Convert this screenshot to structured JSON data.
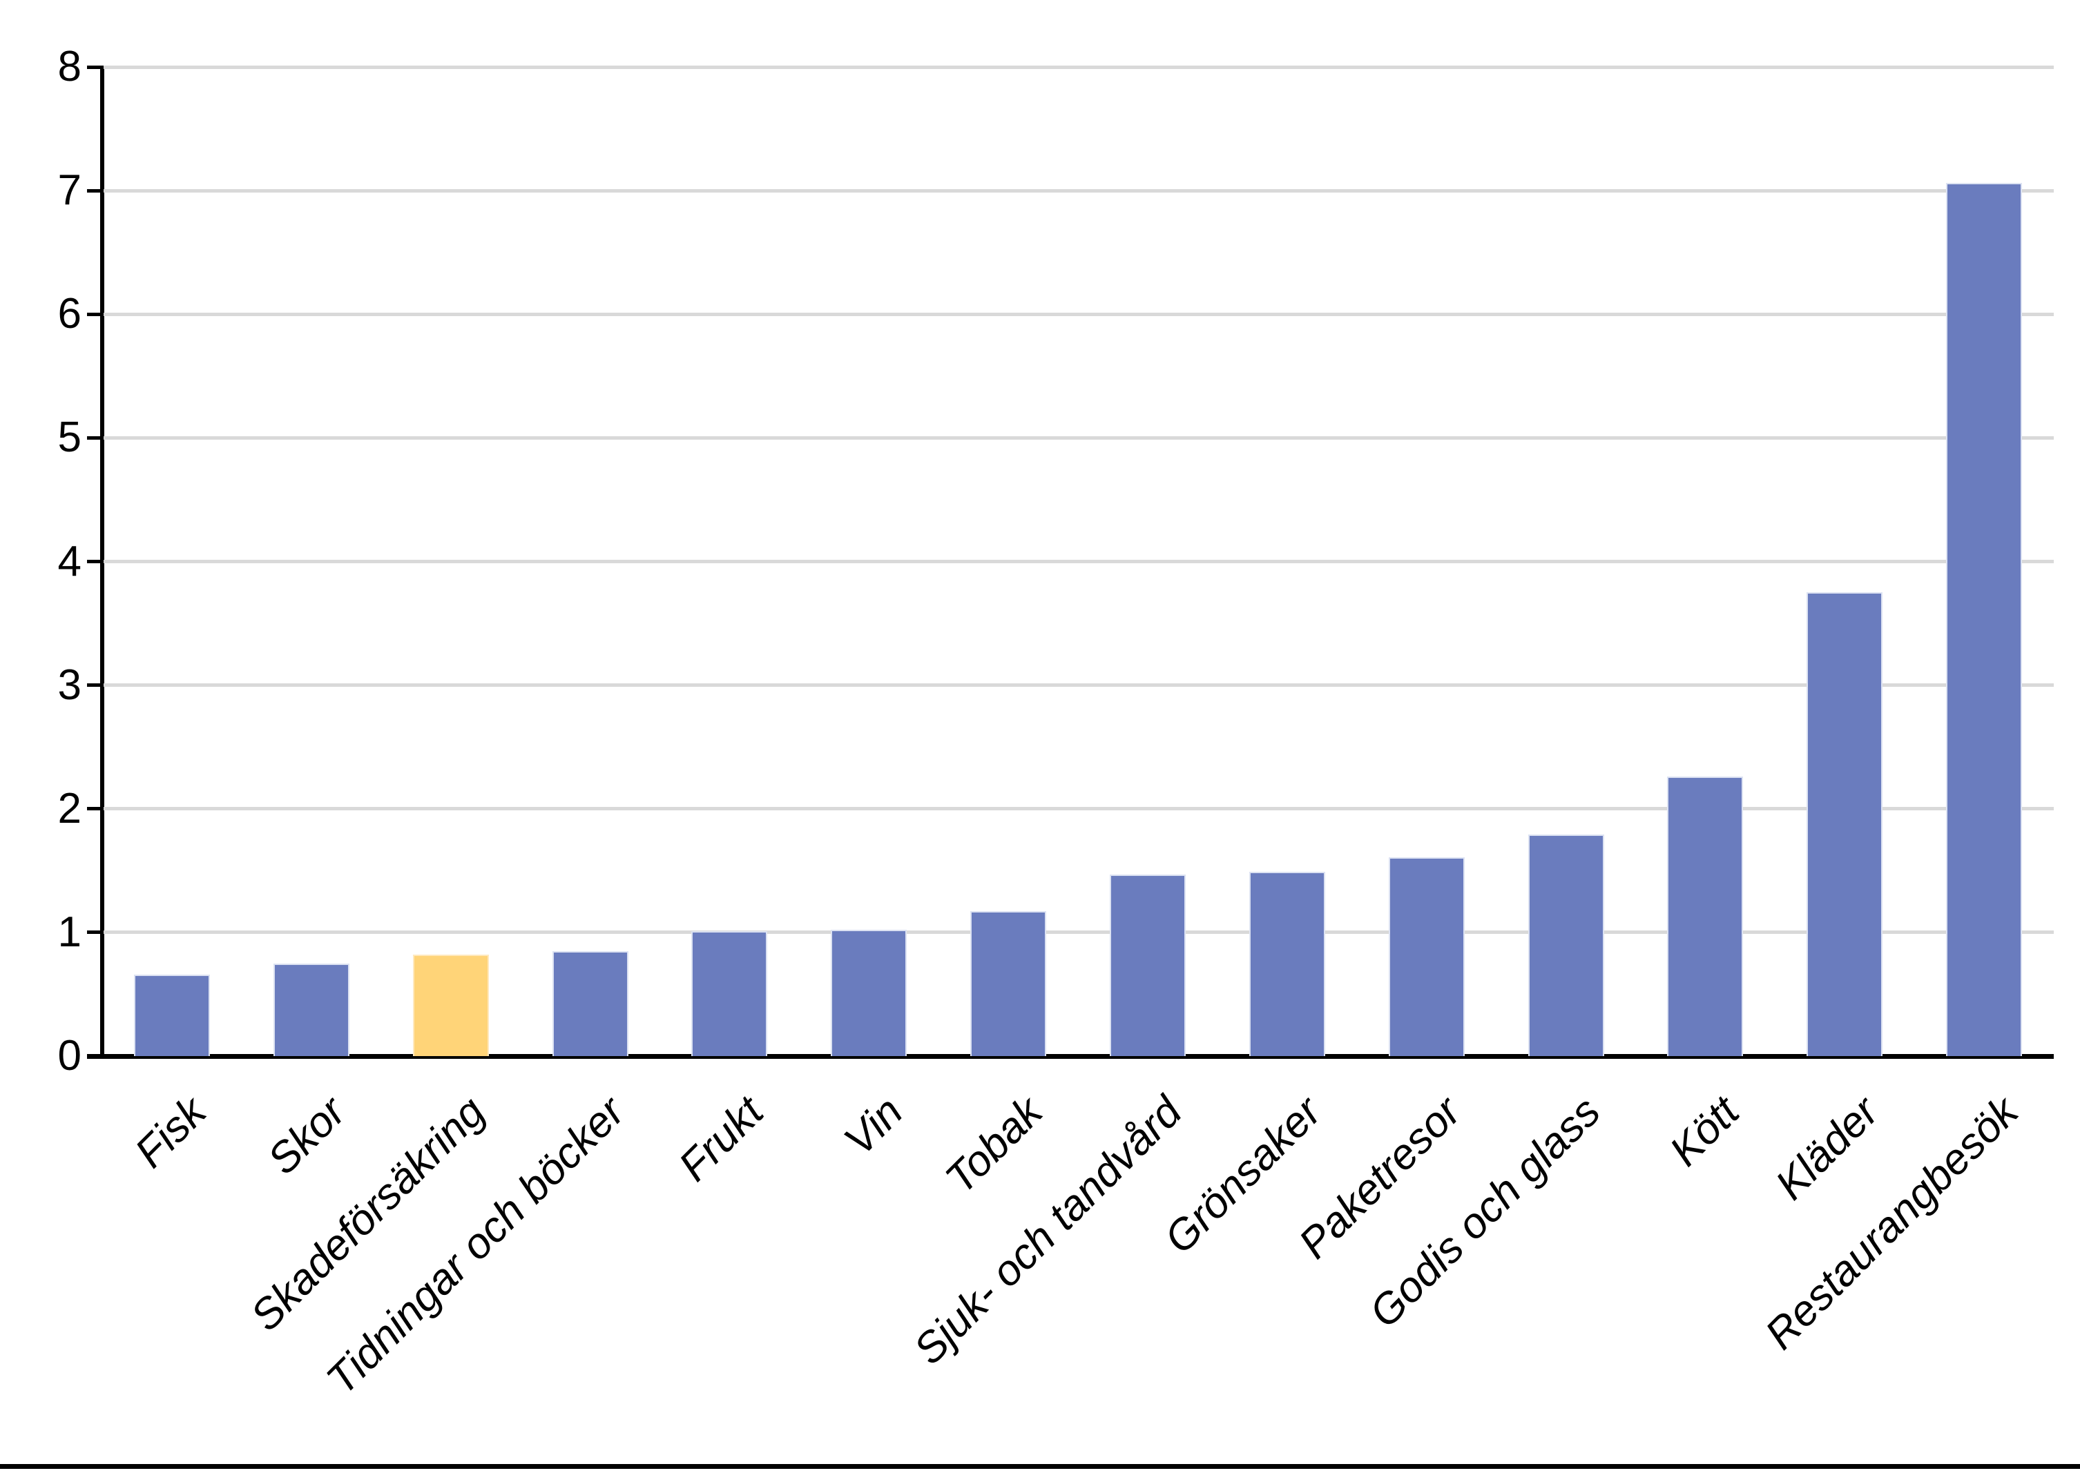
{
  "chart_data": {
    "type": "bar",
    "title": "",
    "xlabel": "",
    "ylabel": "",
    "categories": [
      "Fisk",
      "Skor",
      "Skadeförsäkring",
      "Tidningar och böcker",
      "Frukt",
      "Vin",
      "Tobak",
      "Sjuk- och tandvård",
      "Grönsaker",
      "Paketresor",
      "Godis och glass",
      "Kött",
      "Kläder",
      "Restaurangbesök"
    ],
    "values": [
      0.66,
      0.75,
      0.82,
      0.85,
      1.01,
      1.02,
      1.17,
      1.47,
      1.49,
      1.61,
      1.79,
      2.26,
      3.75,
      7.06
    ],
    "highlight_index": 2,
    "bar_color": "#6A7CBE",
    "bar_border_color": "#DCE2F2",
    "highlight_color": "#FFD478",
    "highlight_border_color": "#FFE9BE",
    "ylim": [
      0,
      8
    ],
    "yticks": [
      "0",
      "1",
      "2",
      "3",
      "4",
      "5",
      "6",
      "7",
      "8"
    ],
    "grid": "horizontal",
    "gridline_color": "#D9D9D9",
    "axis_color": "#000000",
    "legend": "none",
    "x_label_rotation_deg": 45,
    "x_label_style": "italic"
  }
}
